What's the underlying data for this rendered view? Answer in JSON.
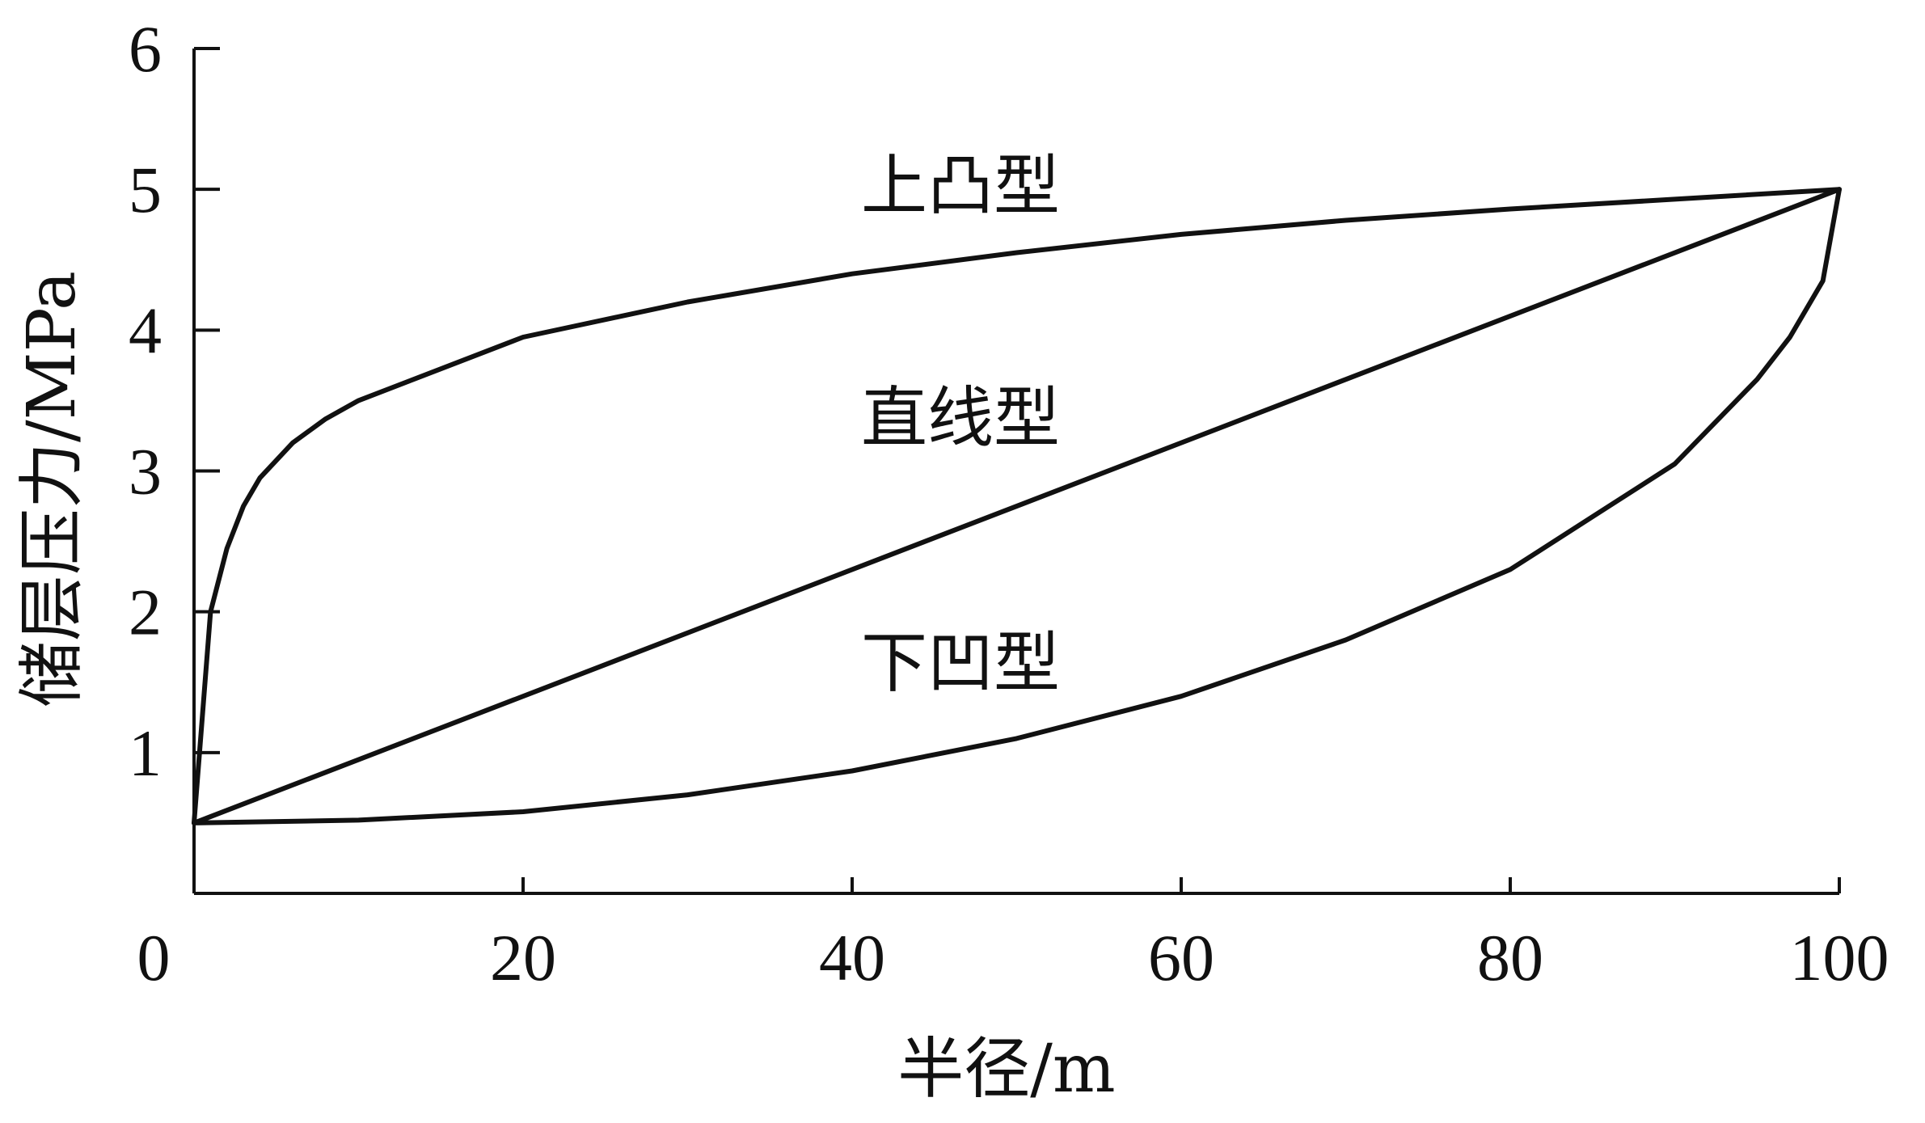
{
  "chart_data": {
    "type": "line",
    "xlabel": "半径/m",
    "ylabel": "储层压力/MPa",
    "xlim": [
      0,
      100
    ],
    "ylim": [
      0,
      6
    ],
    "grid": false,
    "x_ticks": [
      0,
      20,
      40,
      60,
      80,
      100
    ],
    "y_ticks": [
      1,
      2,
      3,
      4,
      5,
      6
    ],
    "series": [
      {
        "name": "上凸型",
        "x": [
          0,
          1,
          2,
          3,
          4,
          6,
          8,
          10,
          20,
          30,
          40,
          50,
          60,
          70,
          80,
          90,
          100
        ],
        "y": [
          0.5,
          2.0,
          2.45,
          2.75,
          2.95,
          3.2,
          3.37,
          3.5,
          3.95,
          4.2,
          4.4,
          4.55,
          4.68,
          4.78,
          4.86,
          4.93,
          5.0
        ]
      },
      {
        "name": "直线型",
        "x": [
          0,
          100
        ],
        "y": [
          0.5,
          5.0
        ]
      },
      {
        "name": "下凹型",
        "x": [
          0,
          10,
          20,
          30,
          40,
          50,
          60,
          70,
          80,
          90,
          95,
          97,
          99,
          100
        ],
        "y": [
          0.5,
          0.52,
          0.58,
          0.7,
          0.87,
          1.1,
          1.4,
          1.8,
          2.3,
          3.05,
          3.65,
          3.95,
          4.35,
          5.0
        ]
      }
    ]
  }
}
